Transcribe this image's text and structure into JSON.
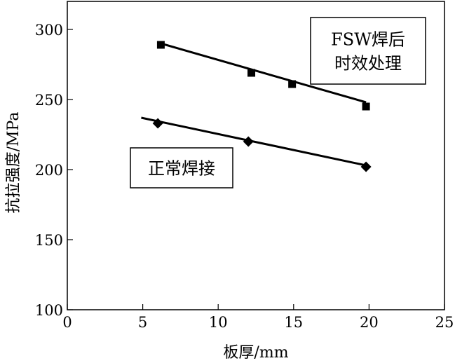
{
  "chart_data": {
    "type": "line",
    "xlabel": "板厚/mm",
    "ylabel": "抗拉强度/MPa",
    "xlim": [
      0,
      25
    ],
    "ylim": [
      100,
      320
    ],
    "xticks": [
      0,
      5,
      10,
      15,
      20,
      25
    ],
    "yticks": [
      100,
      150,
      200,
      250,
      300
    ],
    "grid": false,
    "series": [
      {
        "name": "FSW焊后时效处理",
        "label_lines": [
          "FSW焊后",
          "时效处理"
        ],
        "marker": "square",
        "points": [
          [
            6.2,
            289
          ],
          [
            12.2,
            269
          ],
          [
            14.9,
            261
          ],
          [
            19.8,
            245
          ]
        ],
        "fit": [
          [
            6.2,
            290
          ],
          [
            19.8,
            248
          ]
        ]
      },
      {
        "name": "正常焊接",
        "label_lines": [
          "正常焊接"
        ],
        "marker": "diamond",
        "points": [
          [
            6.0,
            233
          ],
          [
            12.0,
            220
          ],
          [
            19.8,
            202
          ]
        ],
        "fit": [
          [
            4.9,
            237
          ],
          [
            19.8,
            203
          ]
        ]
      }
    ]
  }
}
